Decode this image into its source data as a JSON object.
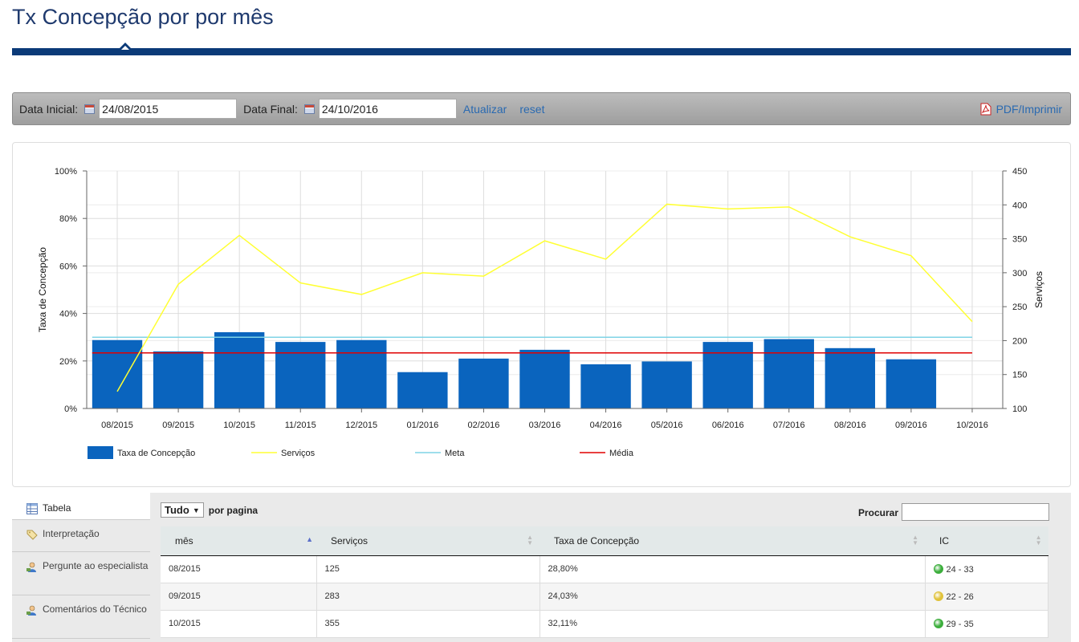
{
  "page": {
    "title": "Tx Concepção por por mês"
  },
  "filters": {
    "start_label": "Data Inicial:",
    "start_value": "24/08/2015",
    "end_label": "Data Final:",
    "end_value": "24/10/2016",
    "update_label": "Atualizar",
    "reset_label": "reset",
    "pdf_label": "PDF/Imprimir"
  },
  "chart_data": {
    "type": "bar",
    "categories": [
      "08/2015",
      "09/2015",
      "10/2015",
      "11/2015",
      "12/2015",
      "01/2016",
      "02/2016",
      "03/2016",
      "04/2016",
      "05/2016",
      "06/2016",
      "07/2016",
      "08/2016",
      "09/2016",
      "10/2016"
    ],
    "series": [
      {
        "name": "Taxa de Concepção",
        "type": "bar",
        "axis": "left",
        "color": "#0a64be",
        "values": [
          28.8,
          24.03,
          32.11,
          28.0,
          28.8,
          15.3,
          21.0,
          24.7,
          18.6,
          19.8,
          28.0,
          29.2,
          25.4,
          20.7,
          null
        ]
      },
      {
        "name": "Serviços",
        "type": "line",
        "axis": "right",
        "color": "#ffff33",
        "values": [
          125,
          283,
          355,
          285,
          268,
          300,
          295,
          347,
          320,
          401,
          394,
          397,
          353,
          325,
          228
        ]
      },
      {
        "name": "Meta",
        "type": "line",
        "axis": "left",
        "color": "#7fd3e6",
        "values": [
          30,
          30,
          30,
          30,
          30,
          30,
          30,
          30,
          30,
          30,
          30,
          30,
          30,
          30,
          30
        ]
      },
      {
        "name": "Média",
        "type": "line",
        "axis": "left",
        "color": "#e00000",
        "values": [
          23.4,
          23.4,
          23.4,
          23.4,
          23.4,
          23.4,
          23.4,
          23.4,
          23.4,
          23.4,
          23.4,
          23.4,
          23.4,
          23.4,
          23.4
        ]
      }
    ],
    "ylabel": "Taxa de Concepção",
    "y2label": "Serviços",
    "ylim": [
      0,
      100
    ],
    "y2lim": [
      100,
      450
    ],
    "yticks": [
      "0%",
      "20%",
      "40%",
      "60%",
      "80%",
      "100%"
    ],
    "y2ticks": [
      "100",
      "150",
      "200",
      "250",
      "300",
      "350",
      "400",
      "450"
    ],
    "grid": true,
    "legend_position": "bottom-left"
  },
  "tabs": [
    {
      "label": "Tabela",
      "icon": "table-icon"
    },
    {
      "label": "Interpretação",
      "icon": "tag-icon"
    },
    {
      "label": "Pergunte ao especialista",
      "icon": "user-question-icon"
    },
    {
      "label": "Comentários do Técnico",
      "icon": "user-comment-icon"
    }
  ],
  "table": {
    "page_size": "Tudo",
    "page_size_label": "por pagina",
    "search_label": "Procurar",
    "columns": [
      "mês",
      "Serviços",
      "Taxa de Concepção",
      "IC"
    ],
    "rows": [
      {
        "month": "08/2015",
        "services": "125",
        "rate": "28,80%",
        "ic": "24 - 33",
        "ic_color": "#3cae3c"
      },
      {
        "month": "09/2015",
        "services": "283",
        "rate": "24,03%",
        "ic": "22 - 26",
        "ic_color": "#e0c23a"
      },
      {
        "month": "10/2015",
        "services": "355",
        "rate": "32,11%",
        "ic": "29 - 35",
        "ic_color": "#3cae3c"
      }
    ]
  }
}
